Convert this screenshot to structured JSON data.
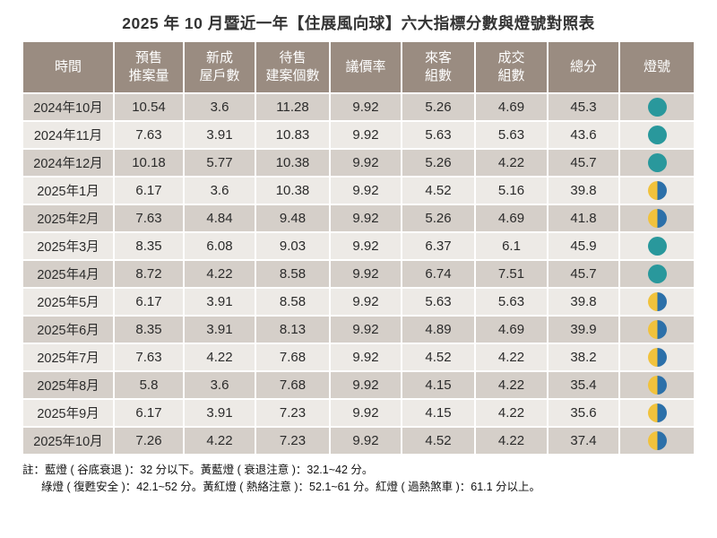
{
  "title": "2025 年 10 月暨近一年【住展風向球】六大指標分數與燈號對照表",
  "theme": {
    "header_bg": "#9a8c81",
    "row_odd": "#d5cfc9",
    "row_even": "#edeae6",
    "separator": "#ffffff"
  },
  "lights": {
    "green_color": "#29989c",
    "yellow_color": "#f1c23c",
    "blue_color": "#2c70a9",
    "green_label": "綠燈",
    "yellow_blue_label": "黃藍燈"
  },
  "table": {
    "headers": [
      "時間",
      "預售\n推案量",
      "新成\n屋戶數",
      "待售\n建案個數",
      "議價率",
      "來客\n組數",
      "成交\n組數",
      "總分",
      "燈號"
    ],
    "rows": [
      {
        "month": "2024年10月",
        "values": [
          "10.54",
          "3.6",
          "11.28",
          "9.92",
          "5.26",
          "4.69",
          "45.3"
        ],
        "light": "green"
      },
      {
        "month": "2024年11月",
        "values": [
          "7.63",
          "3.91",
          "10.83",
          "9.92",
          "5.63",
          "5.63",
          "43.6"
        ],
        "light": "green"
      },
      {
        "month": "2024年12月",
        "values": [
          "10.18",
          "5.77",
          "10.38",
          "9.92",
          "5.26",
          "4.22",
          "45.7"
        ],
        "light": "green"
      },
      {
        "month": "2025年1月",
        "values": [
          "6.17",
          "3.6",
          "10.38",
          "9.92",
          "4.52",
          "5.16",
          "39.8"
        ],
        "light": "yellow-blue"
      },
      {
        "month": "2025年2月",
        "values": [
          "7.63",
          "4.84",
          "9.48",
          "9.92",
          "5.26",
          "4.69",
          "41.8"
        ],
        "light": "yellow-blue"
      },
      {
        "month": "2025年3月",
        "values": [
          "8.35",
          "6.08",
          "9.03",
          "9.92",
          "6.37",
          "6.1",
          "45.9"
        ],
        "light": "green"
      },
      {
        "month": "2025年4月",
        "values": [
          "8.72",
          "4.22",
          "8.58",
          "9.92",
          "6.74",
          "7.51",
          "45.7"
        ],
        "light": "green"
      },
      {
        "month": "2025年5月",
        "values": [
          "6.17",
          "3.91",
          "8.58",
          "9.92",
          "5.63",
          "5.63",
          "39.8"
        ],
        "light": "yellow-blue"
      },
      {
        "month": "2025年6月",
        "values": [
          "8.35",
          "3.91",
          "8.13",
          "9.92",
          "4.89",
          "4.69",
          "39.9"
        ],
        "light": "yellow-blue"
      },
      {
        "month": "2025年7月",
        "values": [
          "7.63",
          "4.22",
          "7.68",
          "9.92",
          "4.52",
          "4.22",
          "38.2"
        ],
        "light": "yellow-blue"
      },
      {
        "month": "2025年8月",
        "values": [
          "5.8",
          "3.6",
          "7.68",
          "9.92",
          "4.15",
          "4.22",
          "35.4"
        ],
        "light": "yellow-blue"
      },
      {
        "month": "2025年9月",
        "values": [
          "6.17",
          "3.91",
          "7.23",
          "9.92",
          "4.15",
          "4.22",
          "35.6"
        ],
        "light": "yellow-blue"
      },
      {
        "month": "2025年10月",
        "values": [
          "7.26",
          "4.22",
          "7.23",
          "9.92",
          "4.52",
          "4.22",
          "37.4"
        ],
        "light": "yellow-blue"
      }
    ]
  },
  "notes": [
    "註：藍燈 ( 谷底衰退 )：32 分以下。黃藍燈 ( 衰退注意 )：32.1~42 分。",
    "綠燈 ( 復甦安全 )：42.1~52 分。黃紅燈 ( 熱絡注意 )：52.1~61 分。紅燈 ( 過熱煞車 )：61.1 分以上。"
  ]
}
